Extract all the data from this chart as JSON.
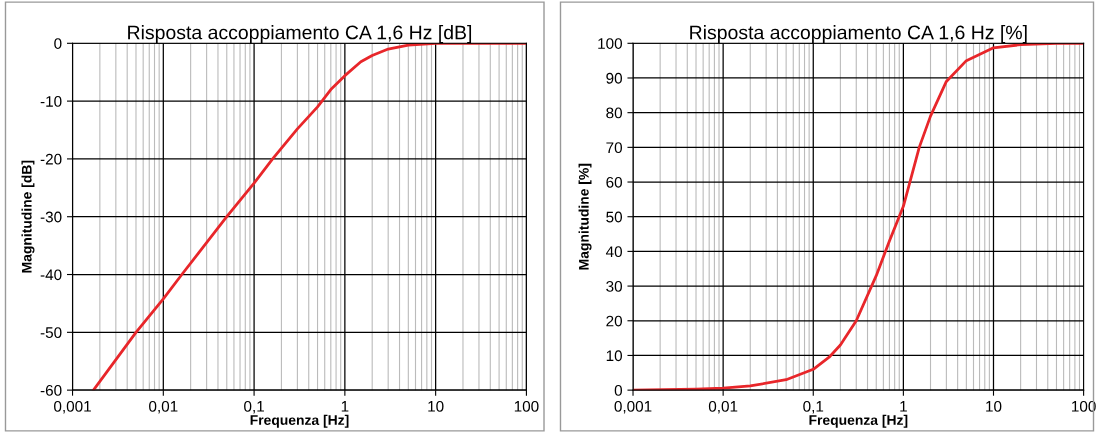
{
  "chart_data": [
    {
      "type": "line",
      "title": "Risposta accoppiamento CA 1,6 Hz [dB]",
      "xlabel": "Frequenza [Hz]",
      "ylabel": "Magnitudine [dB]",
      "log": "x",
      "grid": true,
      "line_style": "solid",
      "xlim": [
        0.001,
        100
      ],
      "xticks": [
        {
          "value": 0.001,
          "label": "0,001"
        },
        {
          "value": 0.01,
          "label": "0,01"
        },
        {
          "value": 0.1,
          "label": "0,1"
        },
        {
          "value": 1,
          "label": "1"
        },
        {
          "value": 10,
          "label": "10"
        },
        {
          "value": 100,
          "label": "100"
        }
      ],
      "ylim": [
        -60,
        0
      ],
      "yticks": [
        -60,
        -50,
        -40,
        -30,
        -20,
        -10,
        0
      ],
      "series": [
        {
          "color": "#e8262a",
          "x": [
            0.0017,
            0.005,
            0.01,
            0.016,
            0.05,
            0.1,
            0.16,
            0.3,
            0.5,
            0.7,
            1,
            1.5,
            2,
            3,
            5,
            10,
            20,
            100
          ],
          "values": [
            -60,
            -50,
            -44.2,
            -40,
            -30,
            -24.2,
            -20,
            -14.8,
            -11,
            -8,
            -5.6,
            -3.2,
            -2.1,
            -1,
            -0.3,
            0,
            0,
            0
          ]
        }
      ]
    },
    {
      "type": "line",
      "title": "Risposta accoppiamento CA 1,6 Hz [%]",
      "xlabel": "Frequenza [Hz]",
      "ylabel": "Magnitudine [%]",
      "log": "x",
      "grid": true,
      "line_style": "solid",
      "xlim": [
        0.001,
        100
      ],
      "xticks": [
        {
          "value": 0.001,
          "label": "0,001"
        },
        {
          "value": 0.01,
          "label": "0,01"
        },
        {
          "value": 0.1,
          "label": "0,1"
        },
        {
          "value": 1,
          "label": "1"
        },
        {
          "value": 10,
          "label": "10"
        },
        {
          "value": 100,
          "label": "100"
        }
      ],
      "ylim": [
        0,
        100
      ],
      "yticks": [
        0,
        10,
        20,
        30,
        40,
        50,
        60,
        70,
        80,
        90,
        100
      ],
      "series": [
        {
          "color": "#e8262a",
          "x": [
            0.001,
            0.005,
            0.01,
            0.02,
            0.05,
            0.1,
            0.15,
            0.2,
            0.3,
            0.5,
            0.7,
            1,
            1.5,
            2,
            3,
            5,
            10,
            20,
            50,
            100
          ],
          "values": [
            0,
            0.3,
            0.6,
            1.2,
            3,
            6,
            9.5,
            13,
            20,
            33,
            43,
            53,
            70,
            79,
            89,
            95,
            98.7,
            99.6,
            100,
            100
          ]
        }
      ]
    }
  ]
}
